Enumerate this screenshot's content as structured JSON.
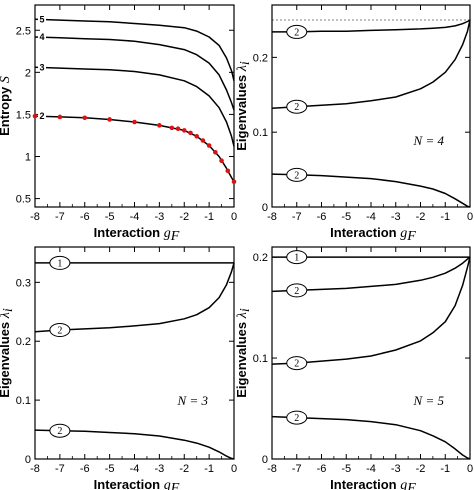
{
  "chart_data": [
    {
      "id": "entropy",
      "type": "line",
      "xlabel": "Interaction",
      "xsym": "g",
      "xsub": "F",
      "ylabel": "Entropy",
      "ysym": "S",
      "xlim": [
        -8,
        0
      ],
      "ylim": [
        0.4,
        2.8
      ],
      "xticks": [
        "-8",
        "-7",
        "-6",
        "-5",
        "-4",
        "-3",
        "-2",
        "-1",
        "0"
      ],
      "yticks": [
        "0.5",
        "1",
        "1.5",
        "2",
        "2.5"
      ],
      "ytick_values": [
        0.5,
        1,
        1.5,
        2,
        2.5
      ],
      "series": [
        {
          "name": "5",
          "x": [
            -8,
            -7,
            -6,
            -5,
            -4,
            -3,
            -2,
            -1.5,
            -1,
            -0.6,
            -0.3,
            -0.1,
            0
          ],
          "y": [
            2.63,
            2.62,
            2.61,
            2.6,
            2.58,
            2.56,
            2.53,
            2.49,
            2.42,
            2.32,
            2.17,
            2.02,
            1.9
          ]
        },
        {
          "name": "4",
          "x": [
            -8,
            -7,
            -6,
            -5,
            -4,
            -3,
            -2,
            -1.5,
            -1,
            -0.6,
            -0.3,
            -0.1,
            0
          ],
          "y": [
            2.42,
            2.41,
            2.4,
            2.39,
            2.37,
            2.33,
            2.27,
            2.21,
            2.11,
            1.97,
            1.79,
            1.64,
            1.55
          ]
        },
        {
          "name": "3",
          "x": [
            -8,
            -7,
            -6,
            -5,
            -4,
            -3,
            -2,
            -1.5,
            -1,
            -0.6,
            -0.3,
            -0.1,
            0
          ],
          "y": [
            2.06,
            2.05,
            2.04,
            2.03,
            2.01,
            1.97,
            1.9,
            1.83,
            1.72,
            1.58,
            1.41,
            1.24,
            1.12
          ]
        },
        {
          "name": "2",
          "x": [
            -8,
            -7,
            -6,
            -5,
            -4,
            -3,
            -2,
            -1.5,
            -1,
            -0.6,
            -0.3,
            -0.1,
            0
          ],
          "y": [
            1.48,
            1.47,
            1.46,
            1.44,
            1.41,
            1.37,
            1.31,
            1.24,
            1.13,
            1.0,
            0.86,
            0.75,
            0.7
          ]
        }
      ],
      "markers": {
        "color": "#dd1111",
        "x": [
          -8,
          -7,
          -6,
          -5,
          -4,
          -3,
          -2.5,
          -2.25,
          -2,
          -1.75,
          -1.5,
          -1.25,
          -1,
          -0.75,
          -0.5,
          -0.25,
          0
        ],
        "y": [
          1.48,
          1.47,
          1.46,
          1.44,
          1.41,
          1.37,
          1.34,
          1.33,
          1.31,
          1.28,
          1.24,
          1.19,
          1.13,
          1.05,
          0.95,
          0.83,
          0.7
        ]
      }
    },
    {
      "id": "n4",
      "type": "line",
      "xlabel": "Interaction",
      "xsym": "g",
      "xsub": "F",
      "ylabel": "Eigenvalues",
      "ysym": "λ",
      "ysub": "i",
      "annotation": "N = 4",
      "xlim": [
        -8,
        0
      ],
      "ylim": [
        0,
        0.27
      ],
      "xticks": [
        "-8",
        "-7",
        "-6",
        "-5",
        "-4",
        "-3",
        "-2",
        "-1",
        "0"
      ],
      "yticks": [
        "0",
        "0.1",
        "0.2"
      ],
      "ytick_values": [
        0,
        0.1,
        0.2
      ],
      "reference_line": 0.25,
      "series": [
        {
          "label": "②",
          "x": [
            -8,
            -7,
            -6,
            -5,
            -4,
            -3,
            -2,
            -1.5,
            -1,
            -0.6,
            -0.3,
            -0.1,
            0
          ],
          "y": [
            0.234,
            0.234,
            0.235,
            0.235,
            0.236,
            0.237,
            0.238,
            0.239,
            0.24,
            0.242,
            0.245,
            0.248,
            0.25
          ]
        },
        {
          "label": "②",
          "x": [
            -8,
            -7,
            -6,
            -5,
            -4,
            -3,
            -2,
            -1.5,
            -1,
            -0.6,
            -0.3,
            -0.1,
            0
          ],
          "y": [
            0.132,
            0.134,
            0.136,
            0.138,
            0.142,
            0.147,
            0.158,
            0.167,
            0.18,
            0.197,
            0.217,
            0.235,
            0.25
          ]
        },
        {
          "label": "②",
          "x": [
            -8,
            -7,
            -6,
            -5,
            -4,
            -3,
            -2,
            -1.5,
            -1,
            -0.6,
            -0.3,
            -0.1,
            0
          ],
          "y": [
            0.044,
            0.043,
            0.042,
            0.04,
            0.038,
            0.034,
            0.028,
            0.024,
            0.018,
            0.011,
            0.005,
            0.001,
            0.0
          ]
        }
      ]
    },
    {
      "id": "n3",
      "type": "line",
      "xlabel": "Interaction",
      "xsym": "g",
      "xsub": "F",
      "ylabel": "Eigenvalues",
      "ysym": "λ",
      "ysub": "i",
      "annotation": "N = 3",
      "xlim": [
        -8,
        0
      ],
      "ylim": [
        0,
        0.36
      ],
      "xticks": [
        "-8",
        "-7",
        "-6",
        "-5",
        "-4",
        "-3",
        "-2",
        "-1",
        "0"
      ],
      "yticks": [
        "0",
        "0.1",
        "0.2",
        "0.3"
      ],
      "ytick_values": [
        0,
        0.1,
        0.2,
        0.3
      ],
      "series": [
        {
          "label": "①",
          "x": [
            -8,
            -4,
            0
          ],
          "y": [
            0.333,
            0.333,
            0.333
          ]
        },
        {
          "label": "②",
          "x": [
            -8,
            -7,
            -6,
            -5,
            -4,
            -3,
            -2,
            -1.5,
            -1,
            -0.6,
            -0.3,
            -0.1,
            0
          ],
          "y": [
            0.216,
            0.219,
            0.221,
            0.223,
            0.226,
            0.23,
            0.238,
            0.245,
            0.257,
            0.274,
            0.296,
            0.318,
            0.333
          ]
        },
        {
          "label": "②",
          "x": [
            -8,
            -7,
            -6,
            -5,
            -4,
            -3,
            -2,
            -1.5,
            -1,
            -0.6,
            -0.3,
            -0.1,
            0
          ],
          "y": [
            0.049,
            0.048,
            0.047,
            0.045,
            0.043,
            0.039,
            0.032,
            0.027,
            0.02,
            0.012,
            0.005,
            0.001,
            0.0
          ]
        }
      ]
    },
    {
      "id": "n5",
      "type": "line",
      "xlabel": "Interaction",
      "xsym": "g",
      "xsub": "F",
      "ylabel": "Eigenvalues",
      "ysym": "λ",
      "ysub": "i",
      "annotation": "N = 5",
      "xlim": [
        -8,
        0
      ],
      "ylim": [
        0,
        0.21
      ],
      "xticks": [
        "-8",
        "-7",
        "-6",
        "-5",
        "-4",
        "-3",
        "-2",
        "-1",
        "0"
      ],
      "yticks": [
        "0",
        "0.1",
        "0.2"
      ],
      "ytick_values": [
        0,
        0.1,
        0.2
      ],
      "series": [
        {
          "label": "①",
          "x": [
            -8,
            -4,
            0
          ],
          "y": [
            0.2,
            0.2,
            0.2
          ]
        },
        {
          "label": "②",
          "x": [
            -8,
            -7,
            -6,
            -5,
            -4,
            -3,
            -2,
            -1.5,
            -1,
            -0.6,
            -0.3,
            -0.1,
            0
          ],
          "y": [
            0.166,
            0.167,
            0.168,
            0.169,
            0.171,
            0.173,
            0.177,
            0.18,
            0.184,
            0.189,
            0.194,
            0.198,
            0.2
          ]
        },
        {
          "label": "②",
          "x": [
            -8,
            -7,
            -6,
            -5,
            -4,
            -3,
            -2,
            -1.5,
            -1,
            -0.6,
            -0.3,
            -0.1,
            0
          ],
          "y": [
            0.094,
            0.095,
            0.097,
            0.099,
            0.102,
            0.108,
            0.117,
            0.125,
            0.136,
            0.152,
            0.172,
            0.19,
            0.2
          ]
        },
        {
          "label": "②",
          "x": [
            -8,
            -7,
            -6,
            -5,
            -4,
            -3,
            -2,
            -1.5,
            -1,
            -0.6,
            -0.3,
            -0.1,
            0
          ],
          "y": [
            0.042,
            0.041,
            0.04,
            0.039,
            0.037,
            0.034,
            0.028,
            0.023,
            0.017,
            0.01,
            0.004,
            0.001,
            0.0
          ]
        }
      ]
    }
  ]
}
